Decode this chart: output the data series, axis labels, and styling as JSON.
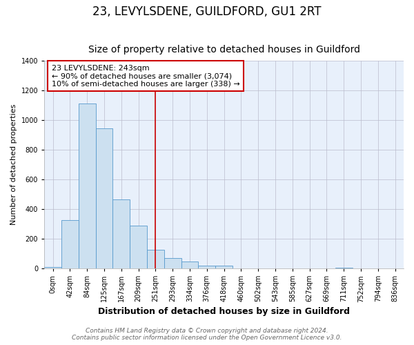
{
  "title": "23, LEVYLSDENE, GUILDFORD, GU1 2RT",
  "subtitle": "Size of property relative to detached houses in Guildford",
  "xlabel": "Distribution of detached houses by size in Guildford",
  "ylabel": "Number of detached properties",
  "bin_labels": [
    "0sqm",
    "42sqm",
    "84sqm",
    "125sqm",
    "167sqm",
    "209sqm",
    "251sqm",
    "293sqm",
    "334sqm",
    "376sqm",
    "418sqm",
    "460sqm",
    "502sqm",
    "543sqm",
    "585sqm",
    "627sqm",
    "669sqm",
    "711sqm",
    "752sqm",
    "794sqm",
    "836sqm"
  ],
  "bar_values": [
    10,
    325,
    1110,
    945,
    465,
    288,
    125,
    70,
    45,
    20,
    20,
    0,
    0,
    0,
    0,
    0,
    0,
    5,
    0,
    0,
    0
  ],
  "bar_color": "#cce0f0",
  "bar_edge_color": "#5599cc",
  "vertical_line_x": 6,
  "vertical_line_color": "#cc0000",
  "annotation_text": "23 LEVYLSDENE: 243sqm\n← 90% of detached houses are smaller (3,074)\n10% of semi-detached houses are larger (338) →",
  "annotation_box_color": "white",
  "annotation_box_edge_color": "#cc0000",
  "ylim": [
    0,
    1400
  ],
  "yticks": [
    0,
    200,
    400,
    600,
    800,
    1000,
    1200,
    1400
  ],
  "grid_color": "#bbbbcc",
  "plot_bg_color": "#e8f0fb",
  "fig_bg_color": "#ffffff",
  "footer_line1": "Contains HM Land Registry data © Crown copyright and database right 2024.",
  "footer_line2": "Contains public sector information licensed under the Open Government Licence v3.0.",
  "title_fontsize": 12,
  "subtitle_fontsize": 10,
  "xlabel_fontsize": 9,
  "ylabel_fontsize": 8,
  "tick_fontsize": 7,
  "annotation_fontsize": 8,
  "footer_fontsize": 6.5
}
